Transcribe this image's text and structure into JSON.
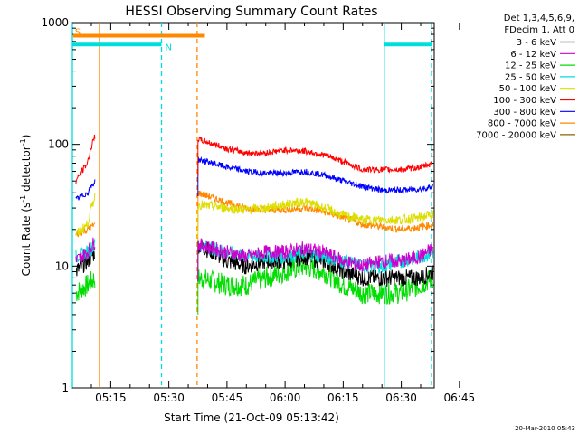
{
  "chart_data": {
    "type": "line",
    "title": "HESSI Observing Summary Count Rates",
    "xlabel": "Start Time (21-Oct-09 05:13:42)",
    "ylabel_main": "Count Rate (s",
    "ylabel_sup1": "-1",
    "ylabel_mid": " detector",
    "ylabel_sup2": "-1",
    "ylabel_end": ")",
    "yscale": "log",
    "ylim": [
      1,
      1000
    ],
    "xlim_minutes": [
      5.1,
      98.5
    ],
    "xtick_labels": [
      "05:15",
      "05:30",
      "05:45",
      "06:00",
      "06:15",
      "06:30",
      "06:45"
    ],
    "xtick_minutes": [
      15,
      30,
      45,
      60,
      75,
      90,
      105
    ],
    "ytick_labels": [
      "1",
      "10",
      "100",
      "1000"
    ],
    "ytick_values": [
      1,
      10,
      100,
      1000
    ],
    "legend": {
      "header": [
        "Det 1,3,4,5,6,9,",
        "FDecim 1, Att 0"
      ],
      "placement": "top-right-outside"
    },
    "series": [
      {
        "name": "3 - 6 keV",
        "color": "#000000",
        "pre": [
          [
            6,
            9
          ],
          [
            9,
            11
          ],
          [
            11,
            13
          ]
        ],
        "post": [
          [
            37.5,
            15
          ],
          [
            45,
            11
          ],
          [
            50,
            10
          ],
          [
            55,
            11
          ],
          [
            60,
            11
          ],
          [
            65,
            12
          ],
          [
            70,
            11
          ],
          [
            75,
            9
          ],
          [
            80,
            8
          ],
          [
            85,
            8
          ],
          [
            90,
            8
          ],
          [
            95,
            8
          ],
          [
            98.3,
            9
          ]
        ]
      },
      {
        "name": "6 - 12 keV",
        "color": "#cc00cc",
        "pre": [
          [
            6,
            11
          ],
          [
            9,
            13
          ],
          [
            11,
            16
          ]
        ],
        "post": [
          [
            37.5,
            15
          ],
          [
            45,
            13
          ],
          [
            50,
            12
          ],
          [
            55,
            13
          ],
          [
            60,
            13
          ],
          [
            65,
            14
          ],
          [
            70,
            13
          ],
          [
            75,
            11
          ],
          [
            80,
            10
          ],
          [
            85,
            11
          ],
          [
            90,
            11
          ],
          [
            95,
            12
          ],
          [
            98.3,
            14
          ]
        ]
      },
      {
        "name": "12 - 25 keV",
        "color": "#00dd00",
        "pre": [
          [
            6,
            6
          ],
          [
            9,
            7
          ],
          [
            11,
            8
          ]
        ],
        "post": [
          [
            37.5,
            8
          ],
          [
            45,
            7
          ],
          [
            50,
            7
          ],
          [
            55,
            8
          ],
          [
            60,
            9
          ],
          [
            65,
            10
          ],
          [
            70,
            9
          ],
          [
            75,
            7
          ],
          [
            80,
            6
          ],
          [
            85,
            6
          ],
          [
            90,
            6
          ],
          [
            95,
            7
          ],
          [
            98.3,
            8
          ]
        ]
      },
      {
        "name": "25 - 50 keV",
        "color": "#00dddd",
        "pre": [
          [
            6,
            12
          ],
          [
            9,
            13
          ],
          [
            11,
            15
          ]
        ],
        "post": [
          [
            37.5,
            15
          ],
          [
            45,
            13
          ],
          [
            50,
            12
          ],
          [
            55,
            12
          ],
          [
            60,
            12
          ],
          [
            65,
            13
          ],
          [
            70,
            12
          ],
          [
            75,
            11
          ],
          [
            80,
            10
          ],
          [
            85,
            10
          ],
          [
            90,
            11
          ],
          [
            95,
            12
          ],
          [
            98.3,
            13
          ]
        ]
      },
      {
        "name": "50 - 100 keV",
        "color": "#dddd00",
        "pre": [
          [
            6,
            18
          ],
          [
            9,
            22
          ],
          [
            11,
            38
          ]
        ],
        "post": [
          [
            37.5,
            32
          ],
          [
            45,
            30
          ],
          [
            50,
            29
          ],
          [
            55,
            30
          ],
          [
            60,
            32
          ],
          [
            65,
            34
          ],
          [
            70,
            30
          ],
          [
            75,
            26
          ],
          [
            80,
            24
          ],
          [
            85,
            24
          ],
          [
            90,
            24
          ],
          [
            95,
            25
          ],
          [
            98.3,
            27
          ]
        ]
      },
      {
        "name": "100 - 300 keV",
        "color": "#ff0000",
        "pre": [
          [
            6,
            50
          ],
          [
            9,
            70
          ],
          [
            11,
            120
          ]
        ],
        "post": [
          [
            37.5,
            110
          ],
          [
            45,
            92
          ],
          [
            50,
            85
          ],
          [
            55,
            85
          ],
          [
            60,
            90
          ],
          [
            65,
            88
          ],
          [
            70,
            82
          ],
          [
            75,
            72
          ],
          [
            80,
            62
          ],
          [
            85,
            62
          ],
          [
            90,
            62
          ],
          [
            95,
            65
          ],
          [
            98.3,
            70
          ]
        ]
      },
      {
        "name": "300 - 800 keV",
        "color": "#0000ff",
        "pre": [
          [
            6,
            35
          ],
          [
            9,
            40
          ],
          [
            11,
            50
          ]
        ],
        "post": [
          [
            37.5,
            75
          ],
          [
            45,
            65
          ],
          [
            50,
            60
          ],
          [
            55,
            58
          ],
          [
            60,
            58
          ],
          [
            65,
            60
          ],
          [
            70,
            56
          ],
          [
            75,
            50
          ],
          [
            80,
            45
          ],
          [
            85,
            42
          ],
          [
            90,
            42
          ],
          [
            95,
            43
          ],
          [
            98.3,
            45
          ]
        ]
      },
      {
        "name": "800 - 7000 keV",
        "color": "#ff8800",
        "pre": [
          [
            6,
            18
          ],
          [
            9,
            20
          ],
          [
            11,
            22
          ]
        ],
        "post": [
          [
            37.5,
            40
          ],
          [
            45,
            33
          ],
          [
            50,
            30
          ],
          [
            55,
            29
          ],
          [
            60,
            29
          ],
          [
            65,
            30
          ],
          [
            70,
            28
          ],
          [
            75,
            25
          ],
          [
            80,
            22
          ],
          [
            85,
            21
          ],
          [
            90,
            20
          ],
          [
            95,
            21
          ],
          [
            98.3,
            22
          ]
        ]
      },
      {
        "name": "7000 - 20000 keV",
        "color": "#886600",
        "pre": [],
        "post": []
      }
    ],
    "markers": [
      {
        "label": "S",
        "color": "#ff8800",
        "start_min": 5.3,
        "end_min": 39.3,
        "level": 780
      },
      {
        "label": "N",
        "color": "#00dddd",
        "start_min": 5.1,
        "end_min": 28.1,
        "level": 660
      },
      {
        "label": "",
        "color": "#00dddd",
        "start_min": 85.6,
        "end_min": 97.8,
        "level": 660
      }
    ],
    "vlines": [
      {
        "minute": 5.1,
        "color": "#00dddd",
        "style": "solid"
      },
      {
        "minute": 12.1,
        "color": "#ff8800",
        "style": "solid"
      },
      {
        "minute": 28.1,
        "color": "#00dddd",
        "style": "dashed"
      },
      {
        "minute": 37.3,
        "color": "#ff8800",
        "style": "dashed"
      },
      {
        "minute": 85.6,
        "color": "#00dddd",
        "style": "solid"
      },
      {
        "minute": 97.8,
        "color": "#00dddd",
        "style": "dashed"
      }
    ]
  },
  "timestamp": "20-Mar-2010 05:43"
}
